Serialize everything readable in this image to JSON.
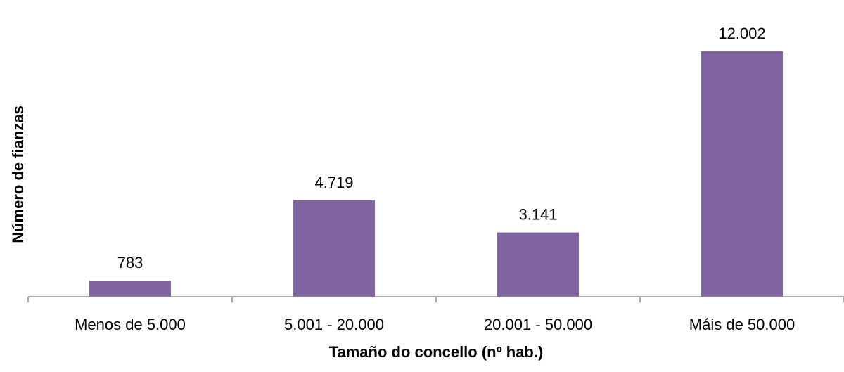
{
  "chart_data": {
    "type": "bar",
    "xlabel": "Tamaño do concello (nº hab.)",
    "ylabel": "Número de fianzas",
    "categories": [
      "Menos de 5.000",
      "5.001 - 20.000",
      "20.001 - 50.000",
      "Máis de 50.000"
    ],
    "values": [
      783,
      4719,
      3141,
      12002
    ],
    "value_labels": [
      "783",
      "4.719",
      "3.141",
      "12.002"
    ],
    "ylim": [
      0,
      12002
    ],
    "grid": false,
    "legend": "none",
    "bar_color": "#8064a2"
  }
}
